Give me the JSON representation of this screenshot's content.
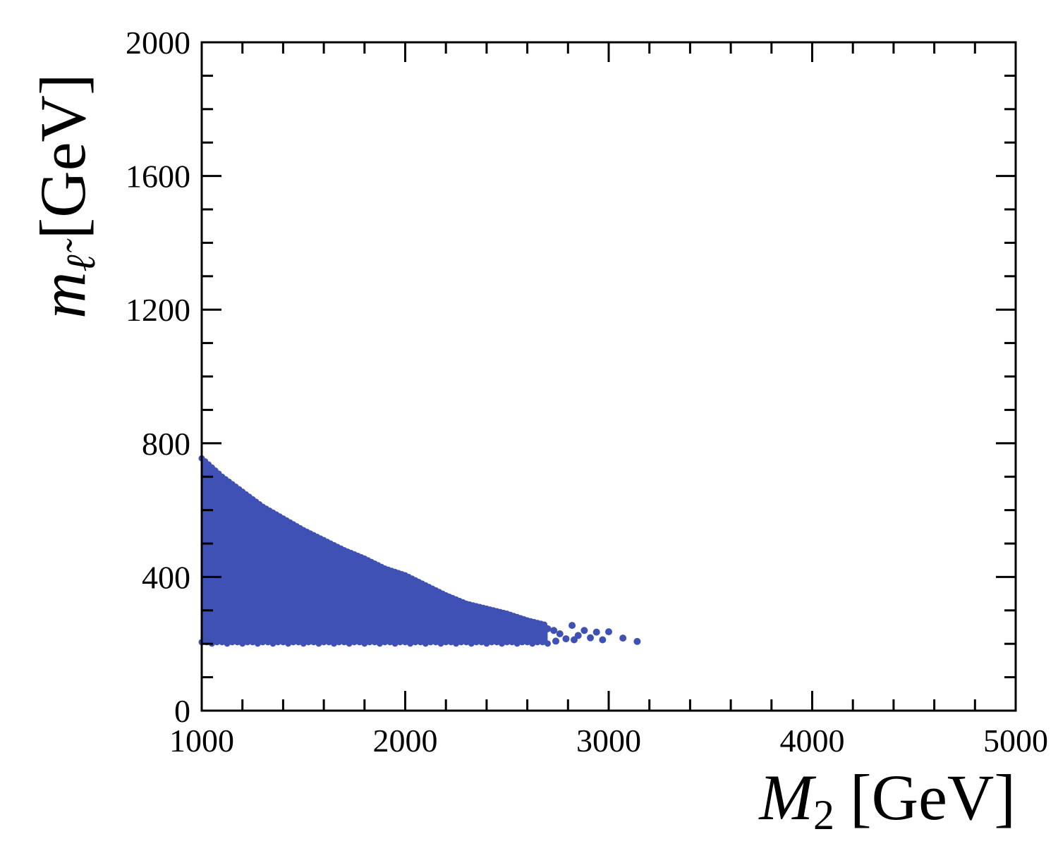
{
  "chart_data": {
    "type": "scatter",
    "xlabel": {
      "symbol": "M",
      "subscript": "2",
      "unit": "[GeV]"
    },
    "ylabel": {
      "symbol": "m",
      "subscript": "ℓ̃",
      "unit": "[GeV]"
    },
    "xlim": [
      1000,
      5000
    ],
    "ylim": [
      0,
      2000
    ],
    "xticks": [
      "1000",
      "2000",
      "3000",
      "4000",
      "5000"
    ],
    "yticks": [
      "0",
      "400",
      "800",
      "1200",
      "1600",
      "2000"
    ],
    "grid": false,
    "marker_color": "#3f51b5",
    "region": {
      "description_points": "dense filled region bounded below by ~205 GeV and above by a falling envelope",
      "upper_envelope": [
        [
          1000,
          755
        ],
        [
          1100,
          700
        ],
        [
          1200,
          655
        ],
        [
          1300,
          610
        ],
        [
          1400,
          575
        ],
        [
          1500,
          540
        ],
        [
          1600,
          510
        ],
        [
          1700,
          480
        ],
        [
          1800,
          455
        ],
        [
          1900,
          425
        ],
        [
          2000,
          405
        ],
        [
          2100,
          375
        ],
        [
          2200,
          345
        ],
        [
          2300,
          320
        ],
        [
          2400,
          305
        ],
        [
          2500,
          290
        ],
        [
          2600,
          270
        ],
        [
          2700,
          255
        ]
      ],
      "lower_bound": 205
    },
    "sparse_points": [
      [
        2330,
        305
      ],
      [
        2360,
        300
      ],
      [
        2410,
        290
      ],
      [
        2440,
        280
      ],
      [
        2490,
        265
      ],
      [
        2520,
        258
      ],
      [
        2550,
        250
      ],
      [
        2580,
        245
      ],
      [
        2610,
        242
      ],
      [
        2640,
        235
      ],
      [
        2670,
        255
      ],
      [
        2700,
        245
      ],
      [
        2730,
        240
      ],
      [
        2760,
        230
      ],
      [
        2790,
        215
      ],
      [
        2820,
        255
      ],
      [
        2850,
        225
      ],
      [
        2880,
        240
      ],
      [
        2910,
        218
      ],
      [
        2940,
        235
      ],
      [
        2970,
        212
      ],
      [
        3000,
        236
      ],
      [
        3070,
        217
      ],
      [
        3140,
        207
      ],
      [
        2450,
        225
      ],
      [
        2520,
        230
      ],
      [
        2600,
        215
      ],
      [
        2680,
        220
      ],
      [
        2740,
        208
      ],
      [
        2830,
        212
      ],
      [
        2560,
        210
      ],
      [
        2640,
        210
      ],
      [
        2480,
        215
      ],
      [
        2380,
        220
      ],
      [
        2300,
        210
      ]
    ]
  }
}
